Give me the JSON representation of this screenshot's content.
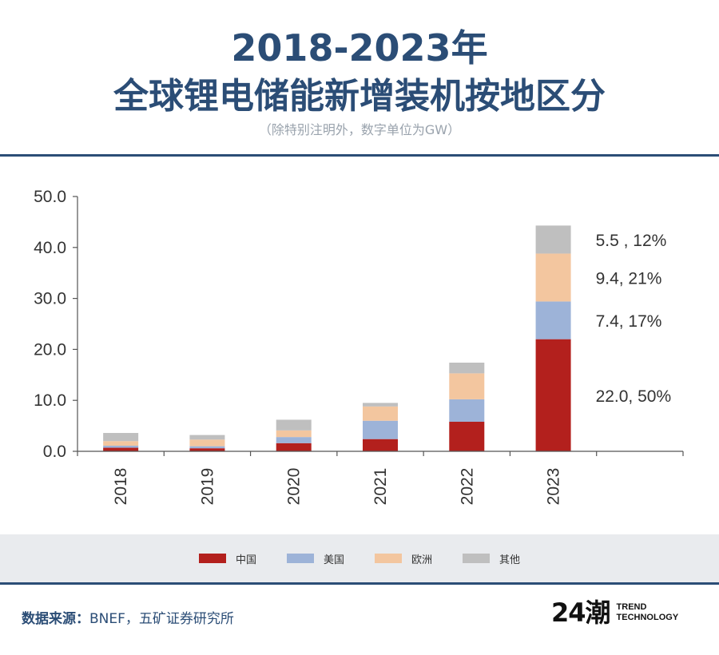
{
  "header": {
    "title_line1": "2018-2023年",
    "title_line2": "全球锂电储能新增装机按地区分",
    "subtitle": "（除特别注明外，数字单位为GW）"
  },
  "chart_data": {
    "type": "bar",
    "stacked": true,
    "categories": [
      "2018",
      "2019",
      "2020",
      "2021",
      "2022",
      "2023"
    ],
    "series": [
      {
        "name": "中国",
        "color": "#b3201d",
        "values": [
          0.7,
          0.6,
          1.6,
          2.4,
          5.8,
          22.0
        ]
      },
      {
        "name": "美国",
        "color": "#9db3d8",
        "values": [
          0.4,
          0.4,
          1.2,
          3.6,
          4.4,
          7.4
        ]
      },
      {
        "name": "欧洲",
        "color": "#f3c69f",
        "values": [
          0.9,
          1.3,
          1.3,
          2.8,
          5.1,
          9.4
        ]
      },
      {
        "name": "其他",
        "color": "#bfbfbf",
        "values": [
          1.6,
          0.9,
          2.1,
          0.7,
          2.1,
          5.5
        ]
      }
    ],
    "y_ticks": [
      "0.0",
      "10.0",
      "20.0",
      "30.0",
      "40.0",
      "50.0"
    ],
    "ylim": [
      0,
      50
    ],
    "annotations": [
      {
        "series": "其他",
        "text": "5.5 , 12%"
      },
      {
        "series": "欧洲",
        "text": "9.4, 21%"
      },
      {
        "series": "美国",
        "text": "7.4, 17%"
      },
      {
        "series": "中国",
        "text": "22.0, 50%"
      }
    ]
  },
  "legend": {
    "items": [
      {
        "label": "中国",
        "color": "#b3201d"
      },
      {
        "label": "美国",
        "color": "#9db3d8"
      },
      {
        "label": "欧洲",
        "color": "#f3c69f"
      },
      {
        "label": "其他",
        "color": "#bfbfbf"
      }
    ]
  },
  "footer": {
    "source_label": "数据来源：",
    "source_text": "BNEF，五矿证券研究所",
    "logo_mark": "24潮",
    "logo_line1": "TREND",
    "logo_line2": "TECHNOLOGY"
  }
}
